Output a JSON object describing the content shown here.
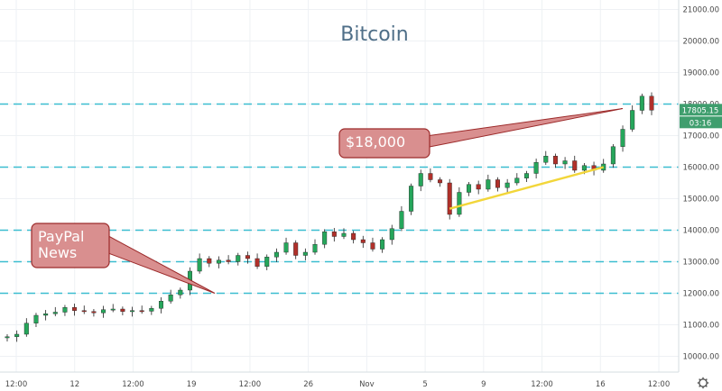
{
  "chart_data": {
    "type": "candlestick",
    "title": "Bitcoin",
    "y_axis": {
      "ticks": [
        10000,
        11000,
        12000,
        13000,
        14000,
        15000,
        16000,
        17000,
        18000,
        19000,
        20000,
        21000
      ],
      "tick_labels": [
        "10000.00",
        "11000.00",
        "12000.00",
        "13000.00",
        "14000.00",
        "15000.00",
        "16000.00",
        "17000.00",
        "18000.00",
        "19000.00",
        "20000.00",
        "21000.00"
      ],
      "ylim": [
        9500,
        21300
      ]
    },
    "x_axis": {
      "tick_labels": [
        "12:00",
        "12",
        "12:00",
        "19",
        "12:00",
        "26",
        "Nov",
        "5",
        "9",
        "12:00",
        "16",
        "12:00"
      ]
    },
    "horizontal_levels": [
      18000,
      16000,
      14000,
      13000,
      12000
    ],
    "level_color": "#3bbdd0",
    "last_price": "17805.15",
    "countdown": "03:16",
    "price_badge_color": "#3f9e6e",
    "up_color": "#26a65b",
    "down_color": "#b0302a",
    "close_series": [
      10620,
      10700,
      11050,
      11300,
      11350,
      11400,
      11550,
      11450,
      11420,
      11380,
      11480,
      11500,
      11420,
      11450,
      11430,
      11520,
      11750,
      11950,
      12100,
      12700,
      13100,
      12950,
      13050,
      13000,
      13200,
      13100,
      12850,
      13150,
      13300,
      13600,
      13200,
      13300,
      13550,
      13950,
      13800,
      13900,
      13700,
      13600,
      13400,
      13700,
      14050,
      14600,
      15400,
      15800,
      15600,
      15500,
      14500,
      15200,
      15450,
      15300,
      15600,
      15350,
      15500,
      15650,
      15800,
      16150,
      16350,
      16100,
      16200,
      15900,
      16050,
      15900,
      16100,
      16650,
      17200,
      17800,
      18250,
      17805.15
    ],
    "annotations": [
      {
        "text": "$18,000",
        "level": 18000
      },
      {
        "text": "PayPal\nNews",
        "level": 12000
      }
    ],
    "trendline": {
      "from_index": 46,
      "to_index": 62,
      "from_value": 14680,
      "to_value": 16000,
      "color": "#f2d63a"
    },
    "callout_fill": "#d98f8f",
    "callout_stroke": "#9c2a2a",
    "gear_icon": "gear-icon"
  }
}
